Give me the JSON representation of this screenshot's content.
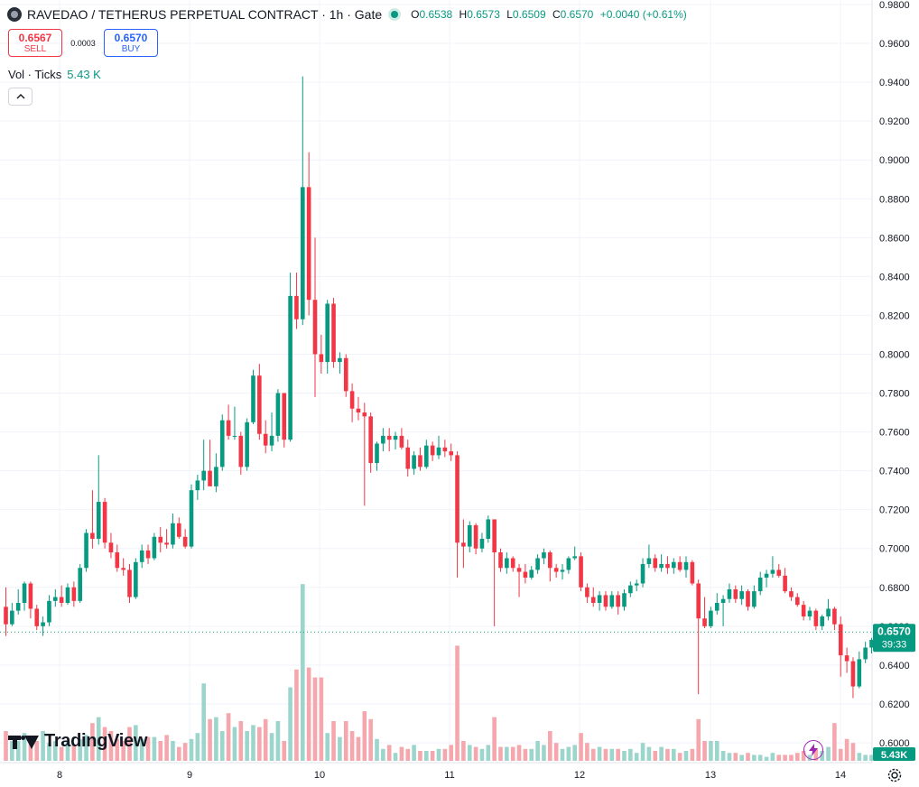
{
  "header": {
    "title": "RAVEDAO / TETHERUS PERPETUAL CONTRACT · 1h · Gate",
    "o_key": "O",
    "o_val": "0.6538",
    "h_key": "H",
    "h_val": "0.6573",
    "l_key": "L",
    "l_val": "0.6509",
    "c_key": "C",
    "c_val": "0.6570",
    "change": "+0.0040 (+0.61%)"
  },
  "trade": {
    "sell_price": "0.6567",
    "sell_label": "SELL",
    "spread": "0.0003",
    "buy_price": "0.6570",
    "buy_label": "BUY"
  },
  "volume_legend": {
    "label": "Vol · Ticks",
    "value": "5.43 K"
  },
  "branding": {
    "logo_text": "TradingView"
  },
  "colors": {
    "up": "#089981",
    "down": "#f23645",
    "up_vol": "#9cd5cc",
    "down_vol": "#f5a7ad",
    "text": "#131722",
    "grid": "#f0f3fa"
  },
  "icons": {
    "collapse": "chevron-up-icon",
    "bolt": "lightning-icon",
    "settings": "gear-icon",
    "symbol": "coin-logo-icon"
  },
  "chart_data": {
    "type": "candlestick",
    "interval": "1h",
    "y_axis_ticks": [
      "0.9800",
      "0.9600",
      "0.9400",
      "0.9200",
      "0.9000",
      "0.8800",
      "0.8600",
      "0.8400",
      "0.8200",
      "0.8000",
      "0.7800",
      "0.7600",
      "0.7400",
      "0.7200",
      "0.7000",
      "0.6800",
      "0.6600",
      "0.6400",
      "0.6200",
      "0.6000"
    ],
    "ylim": [
      0.6,
      0.98
    ],
    "x_axis_ticks": [
      "8",
      "9",
      "10",
      "11",
      "12",
      "13",
      "14"
    ],
    "last_price": "0.6570",
    "countdown": "39:33",
    "volume_last_label": "5.43K",
    "candles": [
      [
        0.67,
        0.68,
        0.655,
        0.661,
        0.15
      ],
      [
        0.661,
        0.672,
        0.66,
        0.668,
        0.1
      ],
      [
        0.668,
        0.679,
        0.666,
        0.672,
        0.1
      ],
      [
        0.672,
        0.683,
        0.668,
        0.682,
        0.14
      ],
      [
        0.682,
        0.683,
        0.664,
        0.669,
        0.11
      ],
      [
        0.669,
        0.671,
        0.658,
        0.66,
        0.1
      ],
      [
        0.66,
        0.665,
        0.655,
        0.662,
        0.15
      ],
      [
        0.662,
        0.676,
        0.66,
        0.673,
        0.09
      ],
      [
        0.673,
        0.679,
        0.67,
        0.675,
        0.1
      ],
      [
        0.675,
        0.681,
        0.67,
        0.672,
        0.07
      ],
      [
        0.672,
        0.682,
        0.671,
        0.68,
        0.1
      ],
      [
        0.68,
        0.683,
        0.67,
        0.673,
        0.08
      ],
      [
        0.673,
        0.692,
        0.672,
        0.69,
        0.11
      ],
      [
        0.69,
        0.71,
        0.688,
        0.708,
        0.13
      ],
      [
        0.708,
        0.73,
        0.7,
        0.705,
        0.19
      ],
      [
        0.705,
        0.748,
        0.702,
        0.724,
        0.22
      ],
      [
        0.724,
        0.726,
        0.7,
        0.703,
        0.17
      ],
      [
        0.703,
        0.708,
        0.695,
        0.698,
        0.15
      ],
      [
        0.698,
        0.702,
        0.688,
        0.69,
        0.11
      ],
      [
        0.69,
        0.695,
        0.686,
        0.689,
        0.1
      ],
      [
        0.689,
        0.692,
        0.672,
        0.675,
        0.17
      ],
      [
        0.675,
        0.695,
        0.674,
        0.693,
        0.18
      ],
      [
        0.693,
        0.702,
        0.69,
        0.699,
        0.11
      ],
      [
        0.699,
        0.702,
        0.692,
        0.695,
        0.12
      ],
      [
        0.695,
        0.708,
        0.694,
        0.706,
        0.12
      ],
      [
        0.706,
        0.711,
        0.698,
        0.703,
        0.1
      ],
      [
        0.703,
        0.71,
        0.7,
        0.702,
        0.13
      ],
      [
        0.702,
        0.718,
        0.7,
        0.713,
        0.1
      ],
      [
        0.713,
        0.716,
        0.705,
        0.706,
        0.07
      ],
      [
        0.706,
        0.71,
        0.7,
        0.701,
        0.09
      ],
      [
        0.701,
        0.733,
        0.7,
        0.73,
        0.11
      ],
      [
        0.73,
        0.738,
        0.725,
        0.735,
        0.14
      ],
      [
        0.735,
        0.756,
        0.73,
        0.74,
        0.39
      ],
      [
        0.74,
        0.756,
        0.735,
        0.732,
        0.21
      ],
      [
        0.732,
        0.749,
        0.729,
        0.742,
        0.22
      ],
      [
        0.742,
        0.769,
        0.74,
        0.766,
        0.15
      ],
      [
        0.766,
        0.774,
        0.756,
        0.758,
        0.24
      ],
      [
        0.758,
        0.773,
        0.756,
        0.758,
        0.17
      ],
      [
        0.758,
        0.76,
        0.738,
        0.742,
        0.2
      ],
      [
        0.742,
        0.767,
        0.74,
        0.765,
        0.15
      ],
      [
        0.765,
        0.792,
        0.764,
        0.789,
        0.18
      ],
      [
        0.789,
        0.795,
        0.756,
        0.759,
        0.17
      ],
      [
        0.759,
        0.766,
        0.749,
        0.753,
        0.21
      ],
      [
        0.753,
        0.77,
        0.75,
        0.758,
        0.14
      ],
      [
        0.758,
        0.782,
        0.755,
        0.78,
        0.2
      ],
      [
        0.78,
        0.78,
        0.752,
        0.756,
        0.1
      ],
      [
        0.756,
        0.842,
        0.755,
        0.83,
        0.37
      ],
      [
        0.83,
        0.842,
        0.813,
        0.818,
        0.46
      ],
      [
        0.818,
        0.943,
        0.815,
        0.886,
        0.89
      ],
      [
        0.886,
        0.904,
        0.82,
        0.828,
        0.47
      ],
      [
        0.828,
        0.86,
        0.778,
        0.8,
        0.42
      ],
      [
        0.8,
        0.81,
        0.79,
        0.796,
        0.42
      ],
      [
        0.796,
        0.828,
        0.79,
        0.826,
        0.14
      ],
      [
        0.826,
        0.829,
        0.793,
        0.796,
        0.2
      ],
      [
        0.796,
        0.801,
        0.79,
        0.798,
        0.12
      ],
      [
        0.798,
        0.8,
        0.778,
        0.781,
        0.2
      ],
      [
        0.781,
        0.785,
        0.765,
        0.772,
        0.15
      ],
      [
        0.772,
        0.778,
        0.766,
        0.77,
        0.12
      ],
      [
        0.77,
        0.775,
        0.722,
        0.768,
        0.25
      ],
      [
        0.768,
        0.77,
        0.739,
        0.744,
        0.21
      ],
      [
        0.744,
        0.755,
        0.74,
        0.754,
        0.11
      ],
      [
        0.754,
        0.762,
        0.75,
        0.758,
        0.06
      ],
      [
        0.758,
        0.762,
        0.75,
        0.756,
        0.08
      ],
      [
        0.756,
        0.76,
        0.751,
        0.758,
        0.04
      ],
      [
        0.758,
        0.762,
        0.751,
        0.752,
        0.07
      ],
      [
        0.752,
        0.756,
        0.737,
        0.741,
        0.06
      ],
      [
        0.741,
        0.75,
        0.738,
        0.748,
        0.08
      ],
      [
        0.748,
        0.752,
        0.74,
        0.742,
        0.05
      ],
      [
        0.742,
        0.756,
        0.741,
        0.753,
        0.05
      ],
      [
        0.753,
        0.755,
        0.745,
        0.748,
        0.05
      ],
      [
        0.748,
        0.758,
        0.746,
        0.752,
        0.06
      ],
      [
        0.752,
        0.756,
        0.747,
        0.75,
        0.06
      ],
      [
        0.75,
        0.754,
        0.745,
        0.748,
        0.08
      ],
      [
        0.748,
        0.75,
        0.685,
        0.703,
        0.58
      ],
      [
        0.703,
        0.715,
        0.69,
        0.701,
        0.1
      ],
      [
        0.701,
        0.714,
        0.698,
        0.712,
        0.08
      ],
      [
        0.712,
        0.713,
        0.697,
        0.7,
        0.07
      ],
      [
        0.7,
        0.708,
        0.698,
        0.705,
        0.06
      ],
      [
        0.705,
        0.717,
        0.703,
        0.715,
        0.08
      ],
      [
        0.715,
        0.715,
        0.66,
        0.698,
        0.22
      ],
      [
        0.698,
        0.7,
        0.688,
        0.69,
        0.07
      ],
      [
        0.69,
        0.698,
        0.687,
        0.695,
        0.07
      ],
      [
        0.695,
        0.696,
        0.688,
        0.69,
        0.07
      ],
      [
        0.69,
        0.692,
        0.675,
        0.688,
        0.08
      ],
      [
        0.688,
        0.692,
        0.682,
        0.685,
        0.06
      ],
      [
        0.685,
        0.691,
        0.684,
        0.689,
        0.06
      ],
      [
        0.689,
        0.697,
        0.687,
        0.695,
        0.1
      ],
      [
        0.695,
        0.7,
        0.692,
        0.698,
        0.08
      ],
      [
        0.698,
        0.699,
        0.683,
        0.69,
        0.15
      ],
      [
        0.69,
        0.692,
        0.685,
        0.688,
        0.09
      ],
      [
        0.688,
        0.692,
        0.684,
        0.689,
        0.06
      ],
      [
        0.689,
        0.696,
        0.687,
        0.695,
        0.07
      ],
      [
        0.695,
        0.701,
        0.694,
        0.696,
        0.08
      ],
      [
        0.696,
        0.698,
        0.678,
        0.68,
        0.14
      ],
      [
        0.68,
        0.682,
        0.672,
        0.675,
        0.09
      ],
      [
        0.675,
        0.68,
        0.67,
        0.672,
        0.06
      ],
      [
        0.672,
        0.678,
        0.668,
        0.676,
        0.07
      ],
      [
        0.676,
        0.678,
        0.668,
        0.67,
        0.06
      ],
      [
        0.67,
        0.678,
        0.669,
        0.676,
        0.06
      ],
      [
        0.676,
        0.678,
        0.666,
        0.67,
        0.06
      ],
      [
        0.67,
        0.679,
        0.668,
        0.677,
        0.05
      ],
      [
        0.677,
        0.683,
        0.675,
        0.681,
        0.06
      ],
      [
        0.681,
        0.684,
        0.678,
        0.682,
        0.04
      ],
      [
        0.682,
        0.695,
        0.68,
        0.692,
        0.09
      ],
      [
        0.692,
        0.702,
        0.69,
        0.695,
        0.07
      ],
      [
        0.695,
        0.697,
        0.688,
        0.69,
        0.05
      ],
      [
        0.69,
        0.697,
        0.688,
        0.692,
        0.07
      ],
      [
        0.692,
        0.696,
        0.687,
        0.69,
        0.06
      ],
      [
        0.69,
        0.695,
        0.687,
        0.693,
        0.06
      ],
      [
        0.693,
        0.696,
        0.688,
        0.689,
        0.04
      ],
      [
        0.689,
        0.696,
        0.685,
        0.693,
        0.05
      ],
      [
        0.693,
        0.694,
        0.681,
        0.682,
        0.06
      ],
      [
        0.682,
        0.684,
        0.625,
        0.664,
        0.21
      ],
      [
        0.664,
        0.675,
        0.659,
        0.66,
        0.1
      ],
      [
        0.66,
        0.67,
        0.659,
        0.668,
        0.1
      ],
      [
        0.668,
        0.677,
        0.666,
        0.672,
        0.1
      ],
      [
        0.672,
        0.676,
        0.66,
        0.674,
        0.05
      ],
      [
        0.674,
        0.682,
        0.672,
        0.679,
        0.04
      ],
      [
        0.679,
        0.681,
        0.672,
        0.674,
        0.04
      ],
      [
        0.674,
        0.681,
        0.671,
        0.678,
        0.03
      ],
      [
        0.678,
        0.679,
        0.668,
        0.67,
        0.04
      ],
      [
        0.67,
        0.681,
        0.669,
        0.678,
        0.03
      ],
      [
        0.678,
        0.688,
        0.676,
        0.685,
        0.03
      ],
      [
        0.685,
        0.689,
        0.68,
        0.687,
        0.02
      ],
      [
        0.687,
        0.696,
        0.685,
        0.689,
        0.04
      ],
      [
        0.689,
        0.692,
        0.685,
        0.686,
        0.03
      ],
      [
        0.686,
        0.69,
        0.677,
        0.678,
        0.03
      ],
      [
        0.678,
        0.68,
        0.673,
        0.675,
        0.03
      ],
      [
        0.675,
        0.677,
        0.67,
        0.671,
        0.04
      ],
      [
        0.671,
        0.673,
        0.663,
        0.665,
        0.05
      ],
      [
        0.665,
        0.67,
        0.663,
        0.668,
        0.03
      ],
      [
        0.668,
        0.669,
        0.658,
        0.66,
        0.06
      ],
      [
        0.66,
        0.666,
        0.658,
        0.665,
        0.05
      ],
      [
        0.665,
        0.674,
        0.663,
        0.669,
        0.07
      ],
      [
        0.669,
        0.67,
        0.658,
        0.661,
        0.19
      ],
      [
        0.661,
        0.665,
        0.634,
        0.645,
        0.06
      ],
      [
        0.645,
        0.649,
        0.636,
        0.642,
        0.11
      ],
      [
        0.642,
        0.644,
        0.623,
        0.629,
        0.09
      ],
      [
        0.629,
        0.647,
        0.628,
        0.643,
        0.04
      ],
      [
        0.643,
        0.652,
        0.641,
        0.649,
        0.03
      ],
      [
        0.649,
        0.654,
        0.646,
        0.653,
        0.03
      ],
      [
        0.6538,
        0.6573,
        0.6509,
        0.657,
        0.03
      ]
    ]
  }
}
